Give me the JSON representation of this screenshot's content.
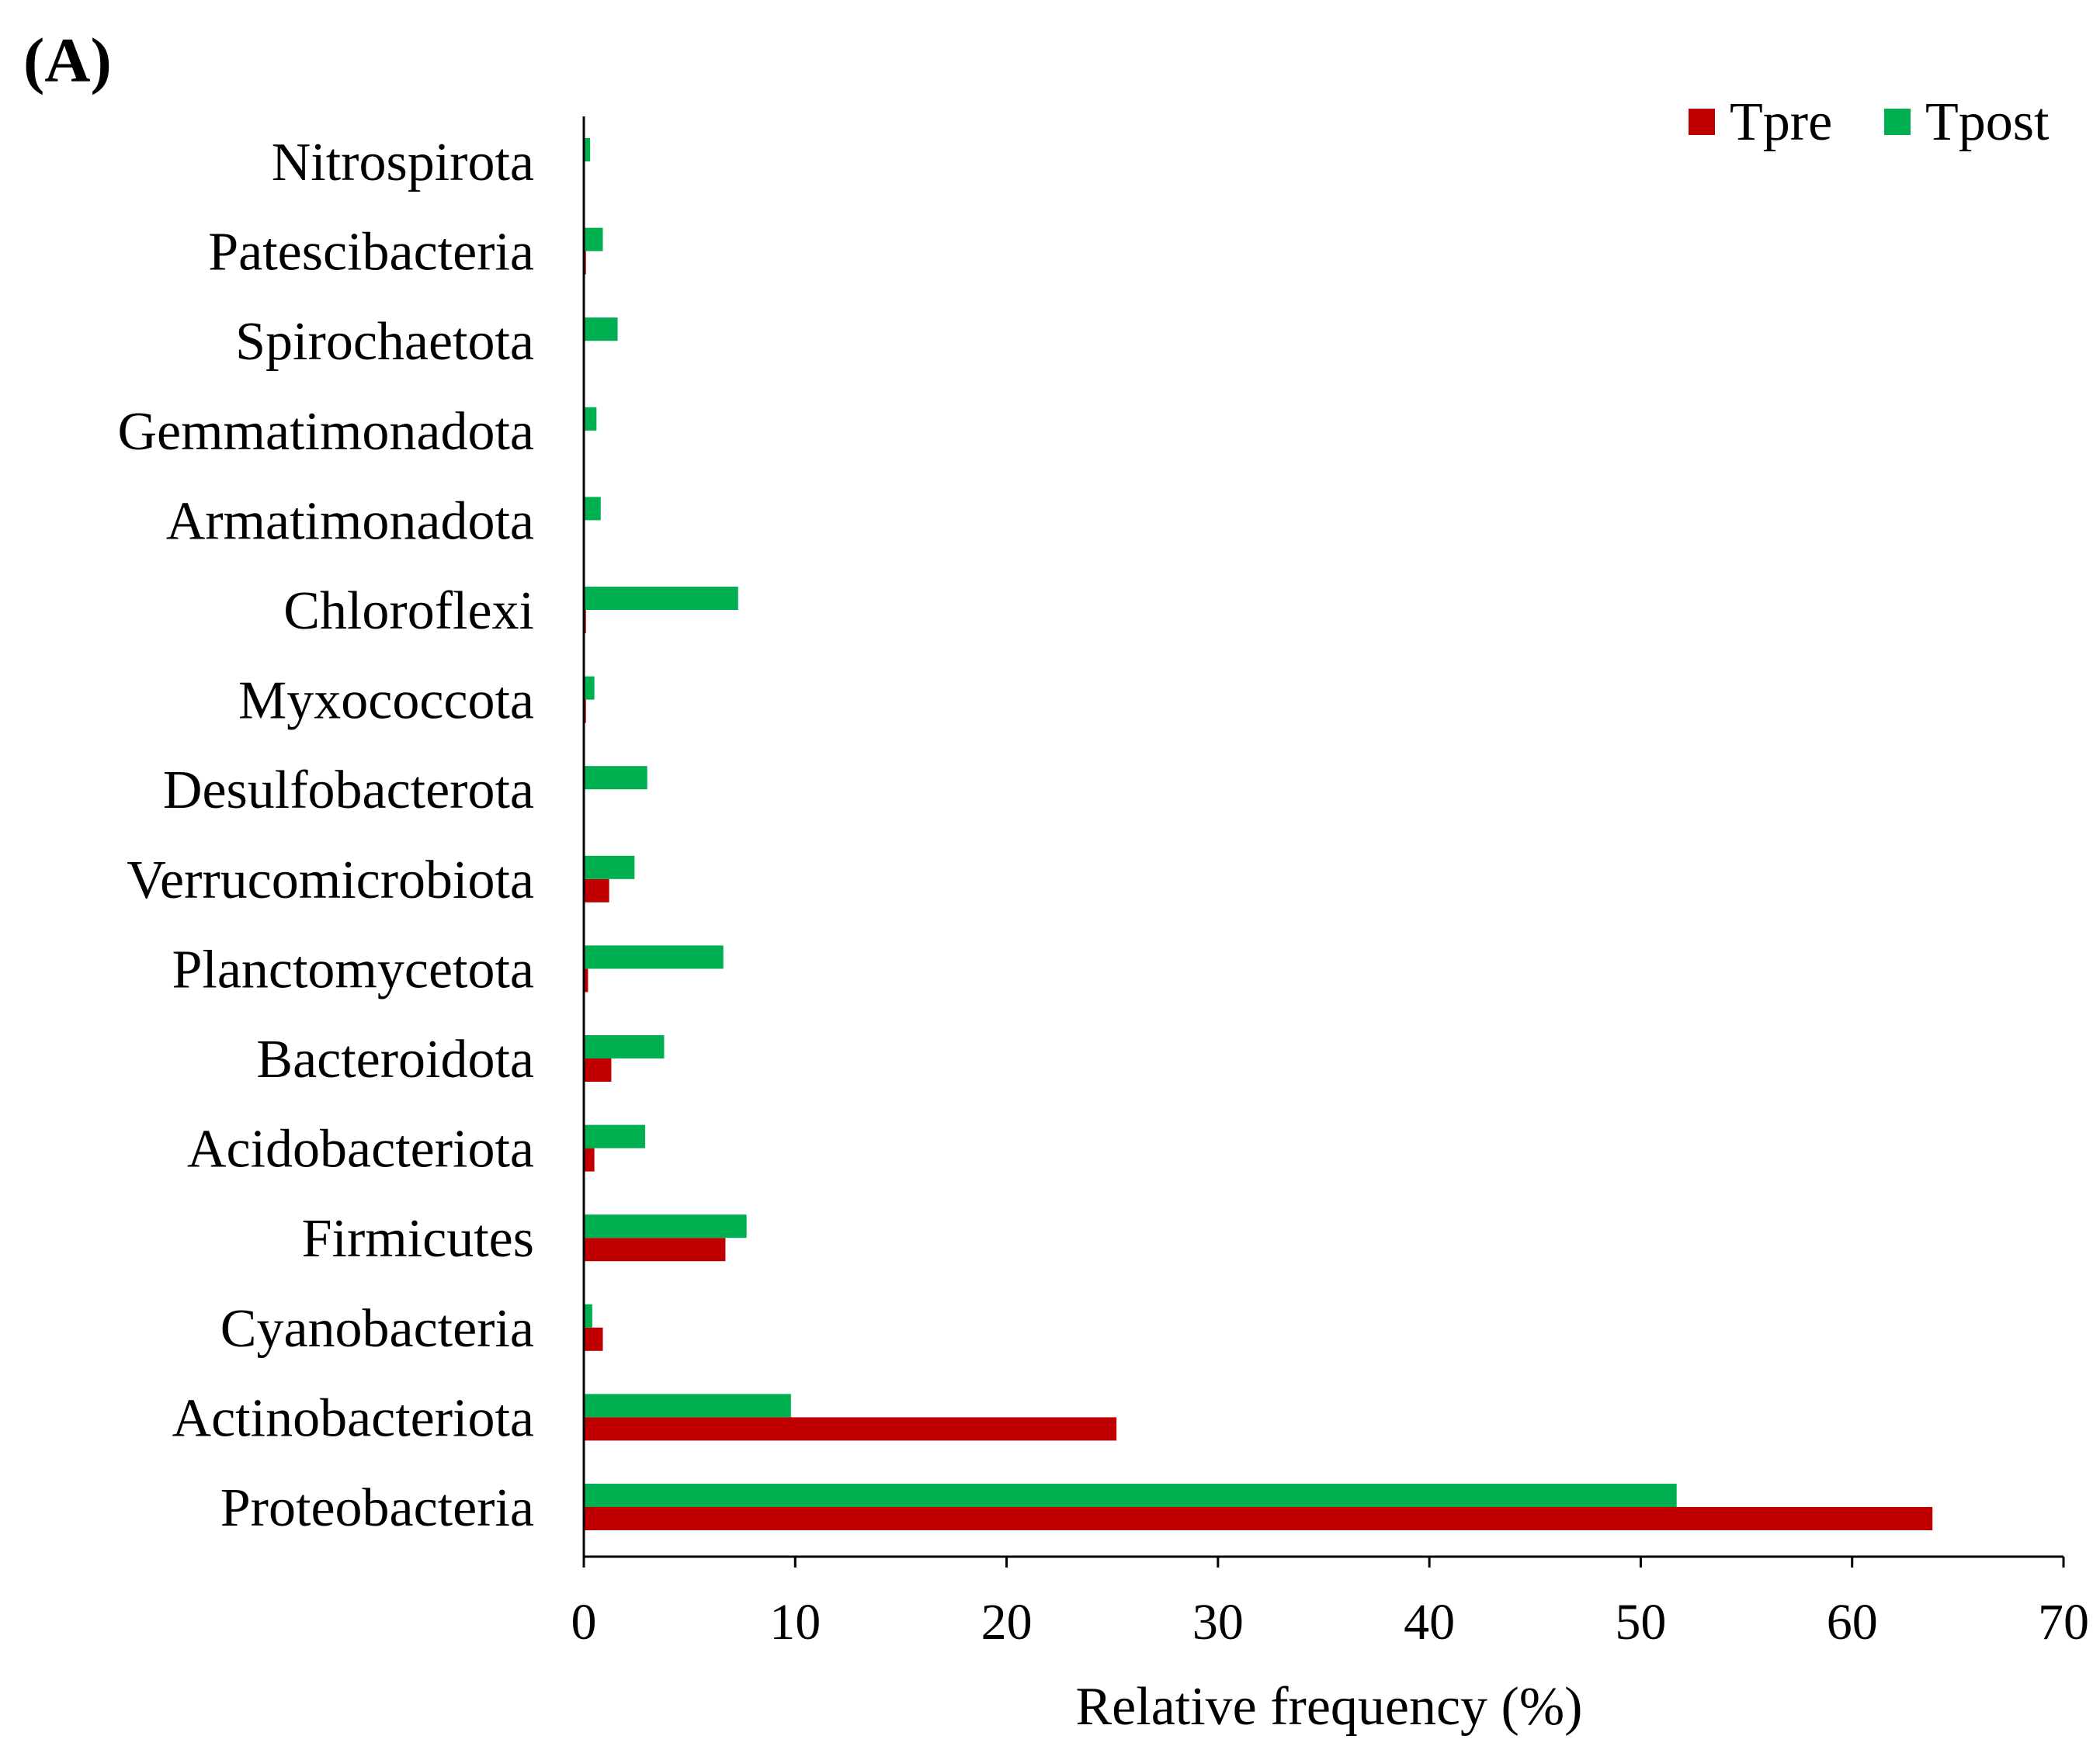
{
  "chart_data": {
    "type": "bar",
    "orientation": "horizontal",
    "panel_label": "(A)",
    "title": "",
    "xlabel": "Relative frequency (%)",
    "ylabel": "",
    "xlim": [
      0,
      70
    ],
    "xticks": [
      0,
      10,
      20,
      30,
      40,
      50,
      60,
      70
    ],
    "grid": false,
    "legend_position": "top-right",
    "categories": [
      "Nitrospirota",
      "Patescibacteria",
      "Spirochaetota",
      "Gemmatimonadota",
      "Armatimonadota",
      "Chloroflexi",
      "Myxococcota",
      "Desulfobacterota",
      "Verrucomicrobiota",
      "Planctomycetota",
      "Bacteroidota",
      "Acidobacteriota",
      "Firmicutes",
      "Cyanobacteria",
      "Actinobacteriota",
      "Proteobacteria"
    ],
    "series": [
      {
        "name": "Tpre",
        "color": "#C00000",
        "values": [
          0.0,
          0.1,
          0.0,
          0.0,
          0.0,
          0.1,
          0.1,
          0.0,
          1.2,
          0.2,
          1.3,
          0.5,
          6.7,
          0.9,
          25.2,
          63.8
        ]
      },
      {
        "name": "Tpost",
        "color": "#00B050",
        "values": [
          0.3,
          0.9,
          1.6,
          0.6,
          0.8,
          7.3,
          0.5,
          3.0,
          2.4,
          6.6,
          3.8,
          2.9,
          7.7,
          0.4,
          9.8,
          51.7
        ]
      }
    ]
  }
}
